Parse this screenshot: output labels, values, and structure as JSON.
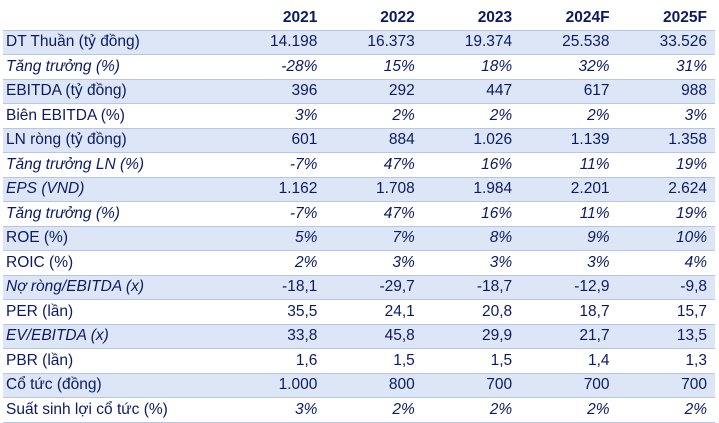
{
  "table": {
    "columns": [
      "2021",
      "2022",
      "2023",
      "2024F",
      "2025F"
    ],
    "rows": [
      {
        "label": "DT Thuần (tỷ đồng)",
        "values": [
          "14.198",
          "16.373",
          "19.374",
          "25.538",
          "33.526"
        ],
        "shaded": true,
        "italic": false
      },
      {
        "label": "Tăng trưởng (%)",
        "values": [
          "-28%",
          "15%",
          "18%",
          "32%",
          "31%"
        ],
        "shaded": false,
        "italic": true
      },
      {
        "label": "EBITDA (tỷ đồng)",
        "values": [
          "396",
          "292",
          "447",
          "617",
          "988"
        ],
        "shaded": true,
        "italic": false
      },
      {
        "label": "Biên EBITDA (%)",
        "values": [
          "3%",
          "2%",
          "2%",
          "2%",
          "3%"
        ],
        "shaded": false,
        "italic": false,
        "italic_values": true
      },
      {
        "label": "LN ròng (tỷ đồng)",
        "values": [
          "601",
          "884",
          "1.026",
          "1.139",
          "1.358"
        ],
        "shaded": true,
        "italic": false
      },
      {
        "label": "Tăng trưởng LN (%)",
        "values": [
          "-7%",
          "47%",
          "16%",
          "11%",
          "19%"
        ],
        "shaded": false,
        "italic": true
      },
      {
        "label": "EPS (VND)",
        "values": [
          "1.162",
          "1.708",
          "1.984",
          "2.201",
          "2.624"
        ],
        "shaded": true,
        "italic": false,
        "italic_label": true
      },
      {
        "label": "Tăng trưởng (%)",
        "values": [
          "-7%",
          "47%",
          "16%",
          "11%",
          "19%"
        ],
        "shaded": false,
        "italic": true
      },
      {
        "label": "ROE (%)",
        "values": [
          "5%",
          "7%",
          "8%",
          "9%",
          "10%"
        ],
        "shaded": true,
        "italic": false,
        "italic_values": true
      },
      {
        "label": "ROIC (%)",
        "values": [
          "2%",
          "3%",
          "3%",
          "3%",
          "4%"
        ],
        "shaded": false,
        "italic": false,
        "italic_values": true
      },
      {
        "label": "Nợ ròng/EBITDA (x)",
        "values": [
          "-18,1",
          "-29,7",
          "-18,7",
          "-12,9",
          "-9,8"
        ],
        "shaded": true,
        "italic": false,
        "italic_label": true
      },
      {
        "label": "PER (lần)",
        "values": [
          "35,5",
          "24,1",
          "20,8",
          "18,7",
          "15,7"
        ],
        "shaded": false,
        "italic": false
      },
      {
        "label": "EV/EBITDA (x)",
        "values": [
          "33,8",
          "45,8",
          "29,9",
          "21,7",
          "13,5"
        ],
        "shaded": true,
        "italic": false,
        "italic_label": true
      },
      {
        "label": "PBR (lần)",
        "values": [
          "1,6",
          "1,5",
          "1,5",
          "1,4",
          "1,3"
        ],
        "shaded": false,
        "italic": false
      },
      {
        "label": "Cổ tức (đồng)",
        "values": [
          "1.000",
          "800",
          "700",
          "700",
          "700"
        ],
        "shaded": true,
        "italic": false
      },
      {
        "label": "Suất sinh lợi cổ tức (%)",
        "values": [
          "3%",
          "2%",
          "2%",
          "2%",
          "2%"
        ],
        "shaded": false,
        "italic": false,
        "italic_values": true
      }
    ]
  }
}
